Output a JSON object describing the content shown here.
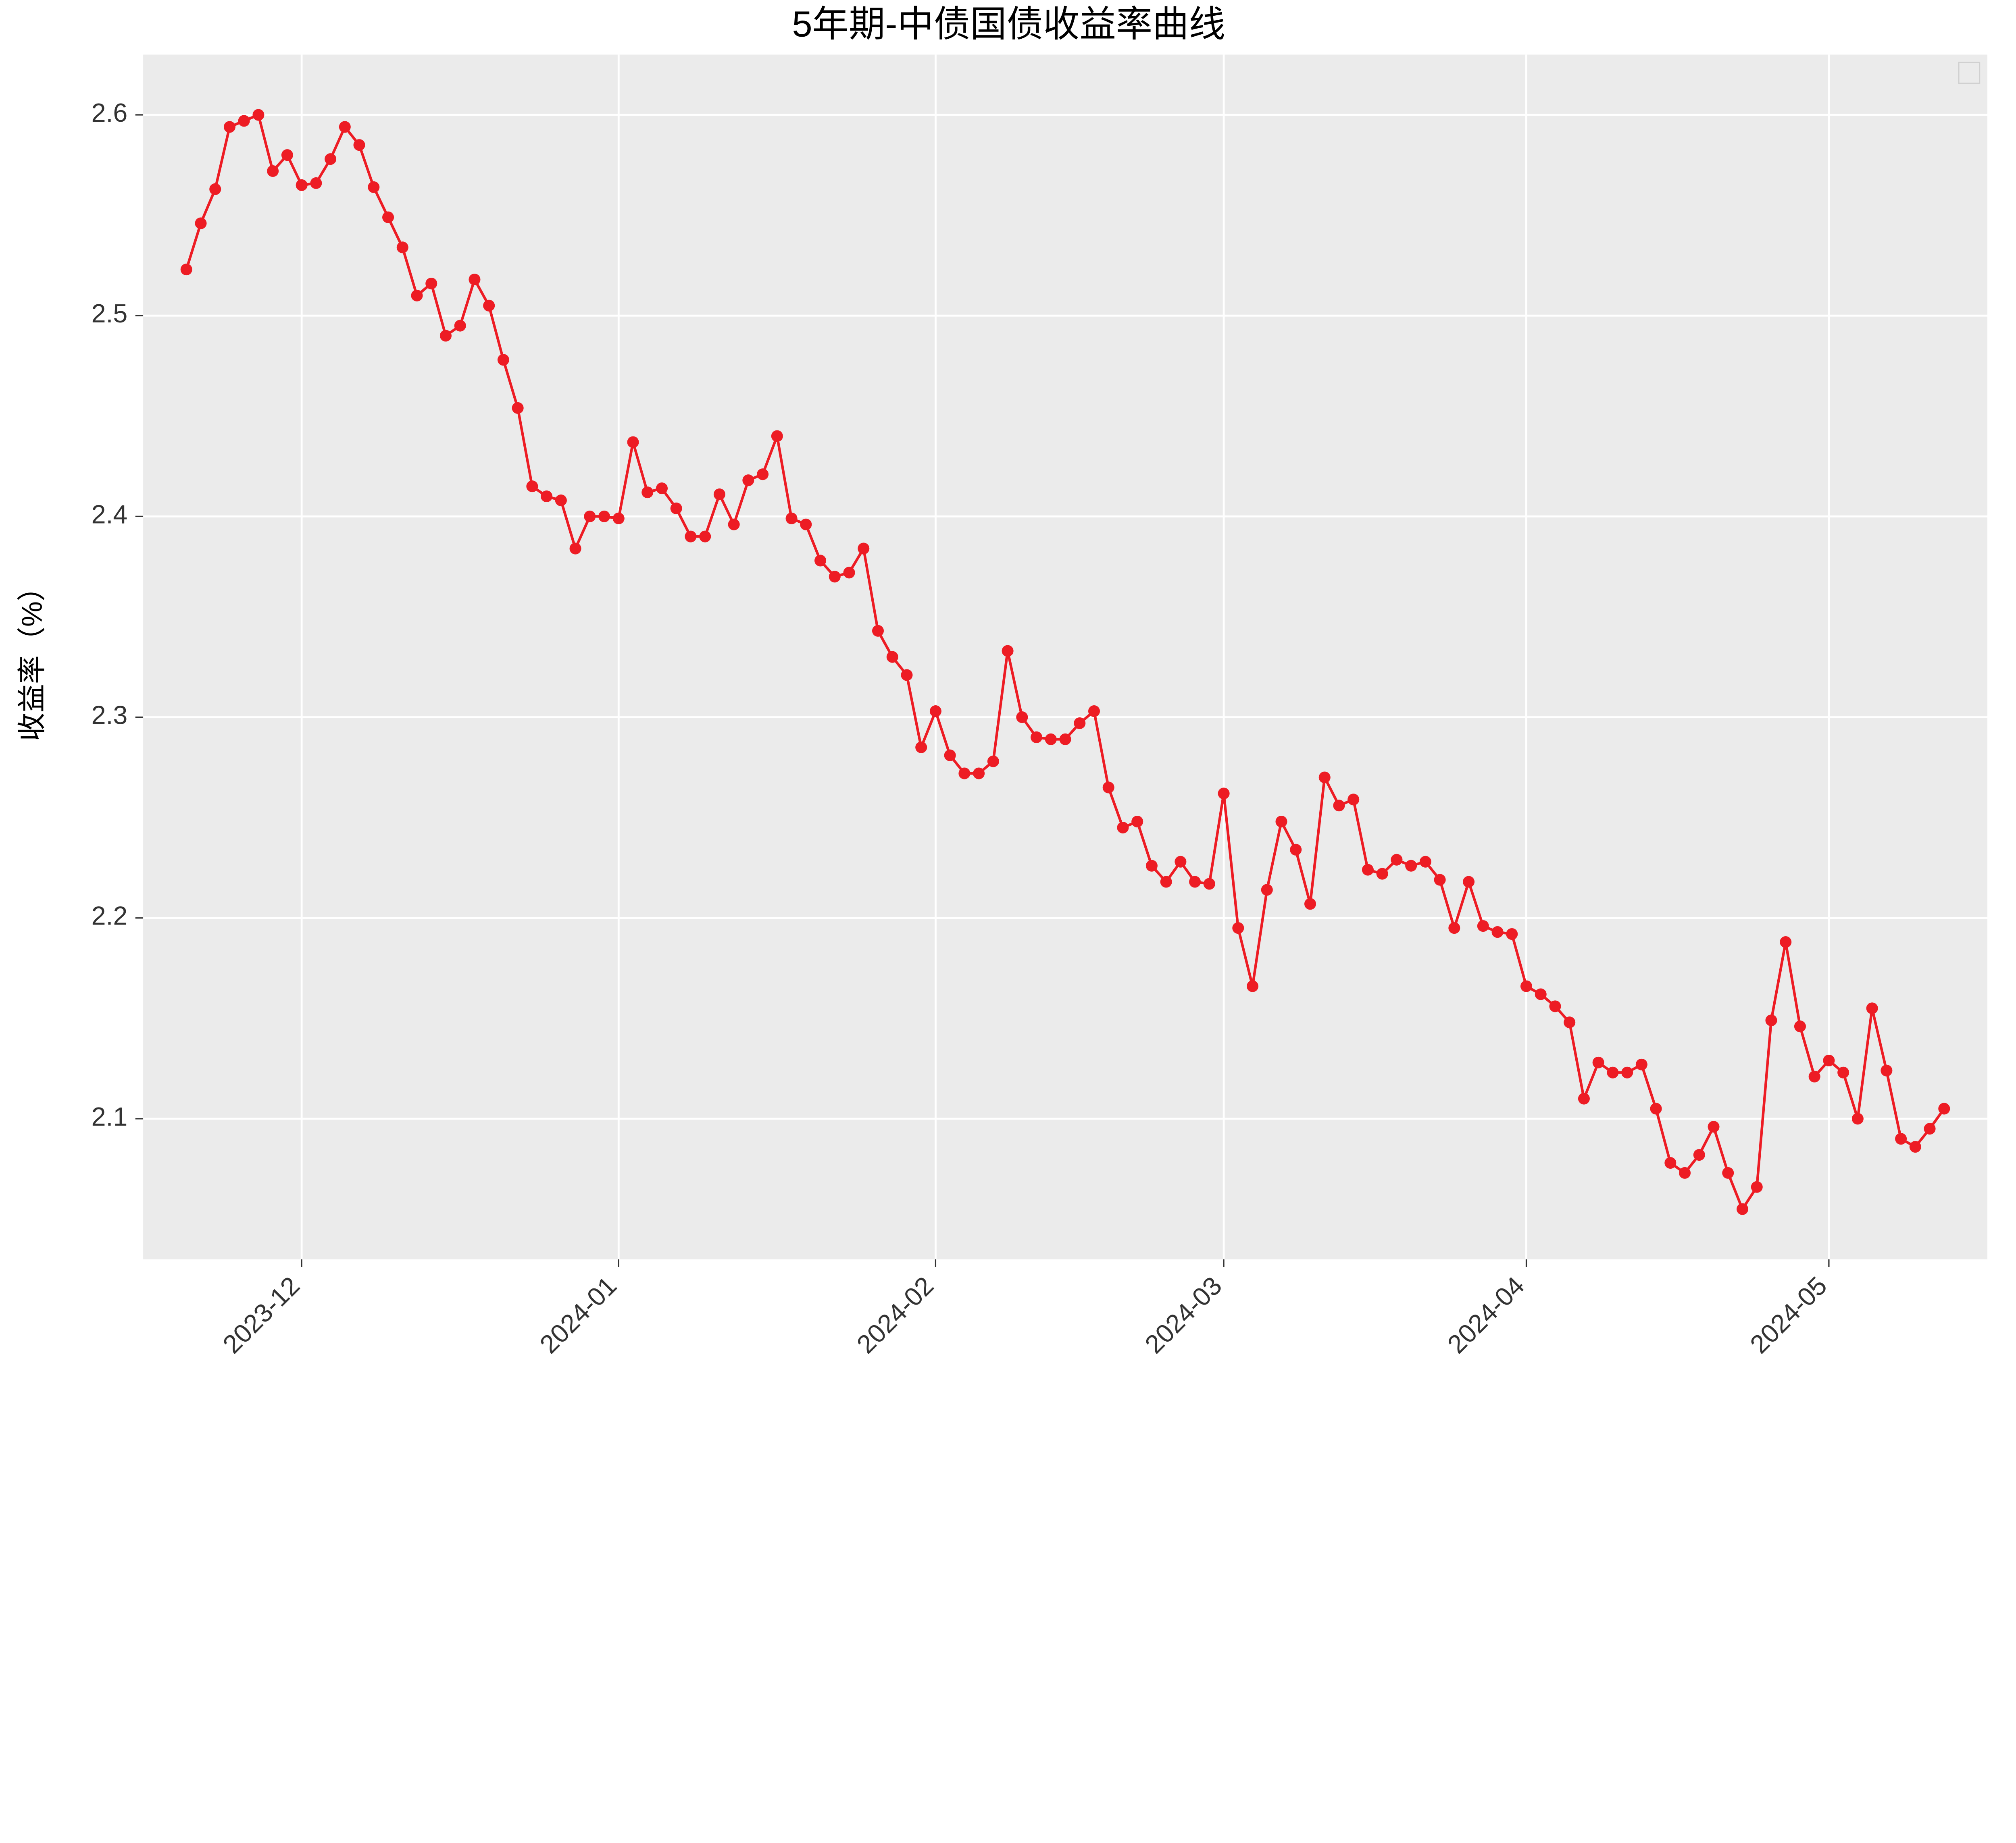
{
  "chart": {
    "type": "line",
    "title": "5年期-中债国债收益率曲线",
    "title_fontsize": 28,
    "ylabel": "收益率（%）",
    "ylabel_fontsize": 22,
    "background_color": "#ffffff",
    "plot_background_color": "#ebebeb",
    "grid_color": "#ffffff",
    "grid_width": 1.5,
    "line_color": "#ed1c24",
    "line_width": 2,
    "marker_color": "#ed1c24",
    "marker_radius": 4.5,
    "tick_fontsize": 20,
    "tick_color": "#333333",
    "ylim": [
      2.03,
      2.63
    ],
    "yticks": [
      2.1,
      2.2,
      2.3,
      2.4,
      2.5,
      2.6
    ],
    "xlim": [
      0,
      128
    ],
    "xticks": [
      {
        "pos": 11,
        "label": "2023-12"
      },
      {
        "pos": 33,
        "label": "2024-01"
      },
      {
        "pos": 55,
        "label": "2024-02"
      },
      {
        "pos": 75,
        "label": "2024-03"
      },
      {
        "pos": 96,
        "label": "2024-04"
      },
      {
        "pos": 117,
        "label": "2024-05"
      }
    ],
    "xtick_rotation": 45,
    "data": [
      {
        "x": 3,
        "y": 2.523
      },
      {
        "x": 4,
        "y": 2.546
      },
      {
        "x": 5,
        "y": 2.563
      },
      {
        "x": 6,
        "y": 2.594
      },
      {
        "x": 7,
        "y": 2.597
      },
      {
        "x": 8,
        "y": 2.6
      },
      {
        "x": 9,
        "y": 2.572
      },
      {
        "x": 10,
        "y": 2.58
      },
      {
        "x": 11,
        "y": 2.565
      },
      {
        "x": 12,
        "y": 2.566
      },
      {
        "x": 13,
        "y": 2.578
      },
      {
        "x": 14,
        "y": 2.594
      },
      {
        "x": 15,
        "y": 2.585
      },
      {
        "x": 16,
        "y": 2.564
      },
      {
        "x": 17,
        "y": 2.549
      },
      {
        "x": 18,
        "y": 2.534
      },
      {
        "x": 19,
        "y": 2.51
      },
      {
        "x": 20,
        "y": 2.516
      },
      {
        "x": 21,
        "y": 2.49
      },
      {
        "x": 22,
        "y": 2.495
      },
      {
        "x": 23,
        "y": 2.518
      },
      {
        "x": 24,
        "y": 2.505
      },
      {
        "x": 25,
        "y": 2.478
      },
      {
        "x": 26,
        "y": 2.454
      },
      {
        "x": 27,
        "y": 2.415
      },
      {
        "x": 28,
        "y": 2.41
      },
      {
        "x": 29,
        "y": 2.408
      },
      {
        "x": 30,
        "y": 2.384
      },
      {
        "x": 31,
        "y": 2.4
      },
      {
        "x": 32,
        "y": 2.4
      },
      {
        "x": 33,
        "y": 2.399
      },
      {
        "x": 34,
        "y": 2.437
      },
      {
        "x": 35,
        "y": 2.412
      },
      {
        "x": 36,
        "y": 2.414
      },
      {
        "x": 37,
        "y": 2.404
      },
      {
        "x": 38,
        "y": 2.39
      },
      {
        "x": 39,
        "y": 2.39
      },
      {
        "x": 40,
        "y": 2.411
      },
      {
        "x": 41,
        "y": 2.396
      },
      {
        "x": 42,
        "y": 2.418
      },
      {
        "x": 43,
        "y": 2.421
      },
      {
        "x": 44,
        "y": 2.44
      },
      {
        "x": 45,
        "y": 2.399
      },
      {
        "x": 46,
        "y": 2.396
      },
      {
        "x": 47,
        "y": 2.378
      },
      {
        "x": 48,
        "y": 2.37
      },
      {
        "x": 49,
        "y": 2.372
      },
      {
        "x": 50,
        "y": 2.384
      },
      {
        "x": 51,
        "y": 2.343
      },
      {
        "x": 52,
        "y": 2.33
      },
      {
        "x": 53,
        "y": 2.321
      },
      {
        "x": 54,
        "y": 2.285
      },
      {
        "x": 55,
        "y": 2.303
      },
      {
        "x": 56,
        "y": 2.281
      },
      {
        "x": 57,
        "y": 2.272
      },
      {
        "x": 58,
        "y": 2.272
      },
      {
        "x": 59,
        "y": 2.278
      },
      {
        "x": 60,
        "y": 2.333
      },
      {
        "x": 61,
        "y": 2.3
      },
      {
        "x": 62,
        "y": 2.29
      },
      {
        "x": 63,
        "y": 2.289
      },
      {
        "x": 64,
        "y": 2.289
      },
      {
        "x": 65,
        "y": 2.297
      },
      {
        "x": 66,
        "y": 2.303
      },
      {
        "x": 67,
        "y": 2.265
      },
      {
        "x": 68,
        "y": 2.245
      },
      {
        "x": 69,
        "y": 2.248
      },
      {
        "x": 70,
        "y": 2.226
      },
      {
        "x": 71,
        "y": 2.218
      },
      {
        "x": 72,
        "y": 2.228
      },
      {
        "x": 73,
        "y": 2.218
      },
      {
        "x": 74,
        "y": 2.217
      },
      {
        "x": 75,
        "y": 2.262
      },
      {
        "x": 76,
        "y": 2.195
      },
      {
        "x": 77,
        "y": 2.166
      },
      {
        "x": 78,
        "y": 2.214
      },
      {
        "x": 79,
        "y": 2.248
      },
      {
        "x": 80,
        "y": 2.234
      },
      {
        "x": 81,
        "y": 2.207
      },
      {
        "x": 82,
        "y": 2.27
      },
      {
        "x": 83,
        "y": 2.256
      },
      {
        "x": 84,
        "y": 2.259
      },
      {
        "x": 85,
        "y": 2.224
      },
      {
        "x": 86,
        "y": 2.222
      },
      {
        "x": 87,
        "y": 2.229
      },
      {
        "x": 88,
        "y": 2.226
      },
      {
        "x": 89,
        "y": 2.228
      },
      {
        "x": 90,
        "y": 2.219
      },
      {
        "x": 91,
        "y": 2.195
      },
      {
        "x": 92,
        "y": 2.218
      },
      {
        "x": 93,
        "y": 2.196
      },
      {
        "x": 94,
        "y": 2.193
      },
      {
        "x": 95,
        "y": 2.192
      },
      {
        "x": 96,
        "y": 2.166
      },
      {
        "x": 97,
        "y": 2.162
      },
      {
        "x": 98,
        "y": 2.156
      },
      {
        "x": 99,
        "y": 2.148
      },
      {
        "x": 100,
        "y": 2.11
      },
      {
        "x": 101,
        "y": 2.128
      },
      {
        "x": 102,
        "y": 2.123
      },
      {
        "x": 103,
        "y": 2.123
      },
      {
        "x": 104,
        "y": 2.127
      },
      {
        "x": 105,
        "y": 2.105
      },
      {
        "x": 106,
        "y": 2.078
      },
      {
        "x": 107,
        "y": 2.073
      },
      {
        "x": 108,
        "y": 2.082
      },
      {
        "x": 109,
        "y": 2.096
      },
      {
        "x": 110,
        "y": 2.073
      },
      {
        "x": 111,
        "y": 2.055
      },
      {
        "x": 112,
        "y": 2.066
      },
      {
        "x": 113,
        "y": 2.149
      },
      {
        "x": 114,
        "y": 2.188
      },
      {
        "x": 115,
        "y": 2.146
      },
      {
        "x": 116,
        "y": 2.121
      },
      {
        "x": 117,
        "y": 2.129
      },
      {
        "x": 118,
        "y": 2.123
      },
      {
        "x": 119,
        "y": 2.1
      },
      {
        "x": 120,
        "y": 2.155
      },
      {
        "x": 121,
        "y": 2.124
      },
      {
        "x": 122,
        "y": 2.09
      },
      {
        "x": 123,
        "y": 2.086
      },
      {
        "x": 124,
        "y": 2.095
      },
      {
        "x": 125,
        "y": 2.105
      }
    ]
  }
}
